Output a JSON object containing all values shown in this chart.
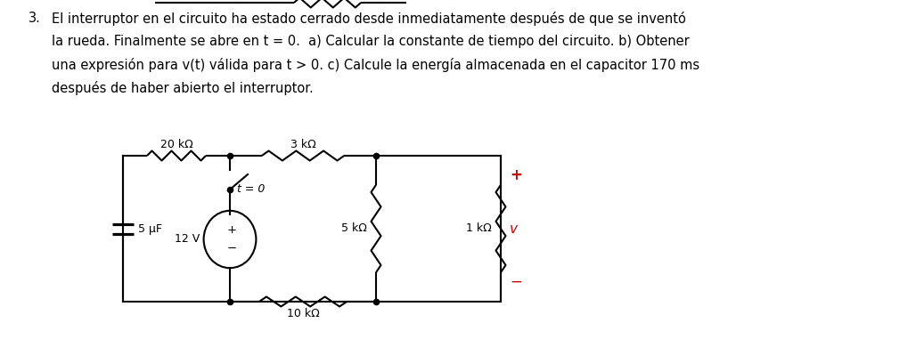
{
  "title_number": "3.",
  "text_line1": "El interruptor en el circuito ha estado cerrado desde inmediatamente después de que se inventó",
  "text_line2": "la rueda. Finalmente se abre en t = 0.  a) Calcular la constante de tiempo del circuito. b) Obtener",
  "text_line3": "una expresión para v(t) válida para t > 0. c) Calcule la energía almacenada en el capacitor 170 ms",
  "text_line4": "después de haber abierto el interruptor.",
  "label_20k": "20 kΩ",
  "label_3k": "3 kΩ",
  "label_5k": "5 kΩ",
  "label_1k": "1 kΩ",
  "label_10k": "10 kΩ",
  "label_5uF": "5 μF",
  "label_12V": "12 V",
  "label_t0": "t = 0",
  "label_v": "v",
  "label_plus": "+",
  "label_minus": "−",
  "text_color": "#000000",
  "red_color": "#cc0000",
  "bg_color": "#ffffff",
  "font_size_text": 10.5,
  "font_size_label": 9.5,
  "font_size_small": 9.0
}
